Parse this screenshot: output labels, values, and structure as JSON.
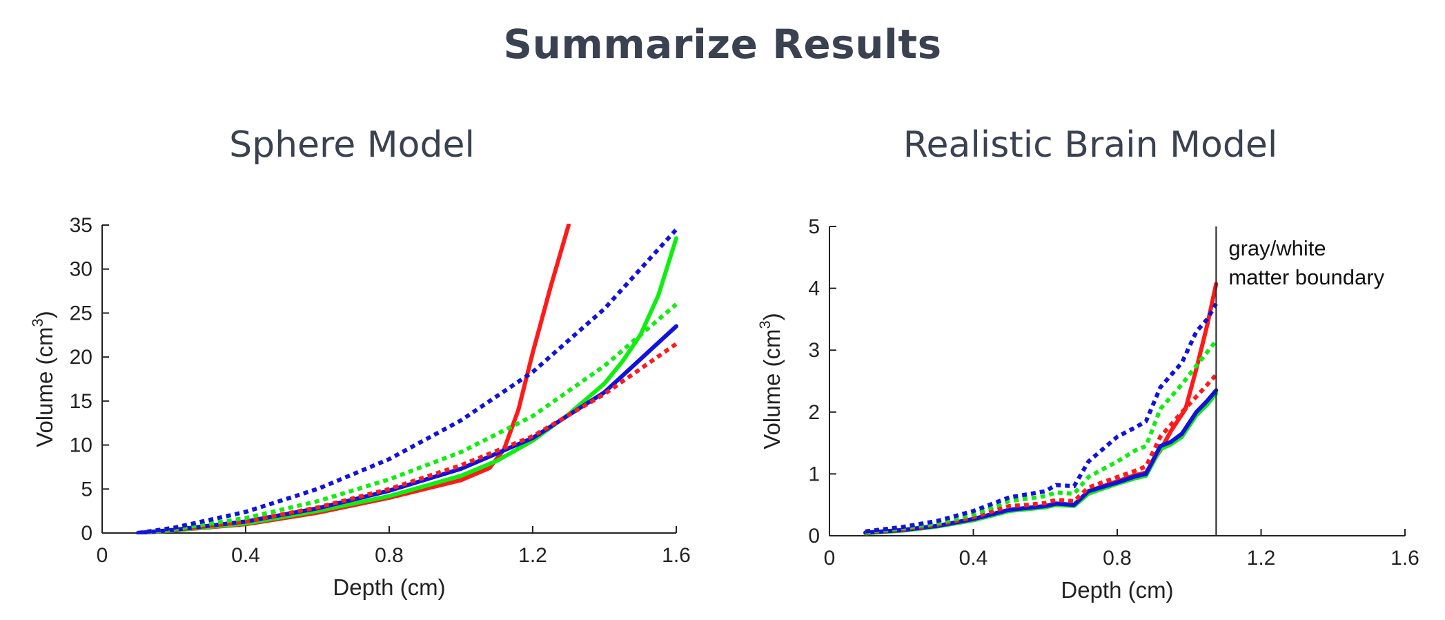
{
  "page": {
    "title": "Summarize Results"
  },
  "colors": {
    "red": "#ff1a1a",
    "green": "#10ee10",
    "blue": "#1212dd",
    "text": "#3a4150"
  },
  "chart_data": [
    {
      "type": "line",
      "title": "Sphere Model",
      "xlabel": "Depth (cm)",
      "ylabel": "Volume (cm",
      "ylabel_sup": "3",
      "ylabel_end": ")",
      "xlim": [
        0,
        1.6
      ],
      "ylim": [
        0,
        35
      ],
      "xticks": [
        0,
        0.4,
        0.8,
        1.2,
        1.6
      ],
      "xtick_labels": [
        "0",
        "0.4",
        "0.8",
        "1.2",
        "1.6"
      ],
      "yticks": [
        0,
        5,
        10,
        15,
        20,
        25,
        30,
        35
      ],
      "ytick_labels": [
        "0",
        "5",
        "10",
        "15",
        "20",
        "25",
        "30",
        "35"
      ],
      "grid": false,
      "series": [
        {
          "color": "#ff1a1a",
          "style": "solid",
          "x": [
            0.1,
            0.2,
            0.4,
            0.6,
            0.8,
            1.0,
            1.08,
            1.12,
            1.16,
            1.2,
            1.25,
            1.3
          ],
          "y": [
            0,
            0.3,
            1.0,
            2.3,
            4.0,
            6.0,
            7.4,
            9.5,
            14.0,
            20.5,
            28.0,
            35.0
          ]
        },
        {
          "color": "#10ee10",
          "style": "solid",
          "x": [
            0.1,
            0.2,
            0.4,
            0.6,
            0.8,
            1.0,
            1.1,
            1.2,
            1.3,
            1.4,
            1.45,
            1.5,
            1.55,
            1.6
          ],
          "y": [
            0,
            0.3,
            1.1,
            2.5,
            4.2,
            6.5,
            8.2,
            10.5,
            13.5,
            17.0,
            19.5,
            22.5,
            27.0,
            33.5
          ]
        },
        {
          "color": "#1212dd",
          "style": "solid",
          "x": [
            0.1,
            0.2,
            0.4,
            0.6,
            0.8,
            1.0,
            1.2,
            1.4,
            1.6
          ],
          "y": [
            0,
            0.35,
            1.3,
            2.8,
            4.8,
            7.3,
            10.8,
            16.0,
            23.5
          ]
        },
        {
          "color": "#ff1a1a",
          "style": "dotted",
          "x": [
            0.1,
            0.2,
            0.4,
            0.6,
            0.8,
            1.0,
            1.2,
            1.4,
            1.6
          ],
          "y": [
            0,
            0.35,
            1.3,
            2.9,
            5.0,
            7.7,
            11.0,
            15.8,
            21.5
          ]
        },
        {
          "color": "#10ee10",
          "style": "dotted",
          "x": [
            0.1,
            0.2,
            0.4,
            0.6,
            0.8,
            1.0,
            1.2,
            1.4,
            1.6
          ],
          "y": [
            0,
            0.45,
            1.7,
            3.6,
            6.1,
            9.2,
            13.3,
            19.0,
            26.0
          ]
        },
        {
          "color": "#1212dd",
          "style": "dotted",
          "x": [
            0.1,
            0.2,
            0.4,
            0.6,
            0.8,
            1.0,
            1.2,
            1.4,
            1.6
          ],
          "y": [
            0,
            0.6,
            2.4,
            5.0,
            8.4,
            12.8,
            18.3,
            25.5,
            34.5
          ]
        }
      ]
    },
    {
      "type": "line",
      "title": "Realistic Brain Model",
      "xlabel": "Depth (cm)",
      "ylabel": "Volume (cm",
      "ylabel_sup": "3",
      "ylabel_end": ")",
      "xlim": [
        0,
        1.6
      ],
      "ylim": [
        0,
        5
      ],
      "xticks": [
        0,
        0.4,
        0.8,
        1.2,
        1.6
      ],
      "xtick_labels": [
        "0",
        "0.4",
        "0.8",
        "1.2",
        "1.6"
      ],
      "yticks": [
        0,
        1,
        2,
        3,
        4,
        5
      ],
      "ytick_labels": [
        "0",
        "1",
        "2",
        "3",
        "4",
        "5"
      ],
      "grid": false,
      "vline": 1.075,
      "annotation": [
        "gray/white",
        "matter boundary"
      ],
      "series": [
        {
          "color": "#ff1a1a",
          "style": "solid",
          "x": [
            0.1,
            0.2,
            0.3,
            0.4,
            0.5,
            0.55,
            0.6,
            0.63,
            0.68,
            0.72,
            0.8,
            0.85,
            0.88,
            0.92,
            0.95,
            0.99,
            1.02,
            1.05,
            1.075
          ],
          "y": [
            0.05,
            0.09,
            0.16,
            0.27,
            0.42,
            0.45,
            0.48,
            0.52,
            0.5,
            0.72,
            0.88,
            0.98,
            1.02,
            1.38,
            1.7,
            2.05,
            2.7,
            3.4,
            4.07
          ]
        },
        {
          "color": "#10ee10",
          "style": "solid",
          "x": [
            0.1,
            0.2,
            0.3,
            0.4,
            0.5,
            0.55,
            0.6,
            0.63,
            0.68,
            0.72,
            0.8,
            0.85,
            0.88,
            0.92,
            0.95,
            0.98,
            1.02,
            1.05,
            1.075
          ],
          "y": [
            0.04,
            0.08,
            0.15,
            0.25,
            0.4,
            0.43,
            0.46,
            0.5,
            0.48,
            0.68,
            0.84,
            0.93,
            0.97,
            1.4,
            1.48,
            1.6,
            1.95,
            2.12,
            2.3
          ]
        },
        {
          "color": "#1212dd",
          "style": "solid",
          "x": [
            0.1,
            0.2,
            0.3,
            0.4,
            0.5,
            0.55,
            0.6,
            0.63,
            0.68,
            0.72,
            0.8,
            0.85,
            0.88,
            0.92,
            0.95,
            0.98,
            1.02,
            1.05,
            1.075
          ],
          "y": [
            0.05,
            0.09,
            0.16,
            0.27,
            0.42,
            0.45,
            0.48,
            0.52,
            0.5,
            0.72,
            0.86,
            0.96,
            1.0,
            1.45,
            1.52,
            1.65,
            2.0,
            2.18,
            2.35
          ]
        },
        {
          "color": "#ff1a1a",
          "style": "dotted",
          "x": [
            0.1,
            0.2,
            0.3,
            0.4,
            0.5,
            0.55,
            0.6,
            0.63,
            0.68,
            0.72,
            0.8,
            0.85,
            0.88,
            0.92,
            0.95,
            0.98,
            1.02,
            1.075
          ],
          "y": [
            0.05,
            0.1,
            0.18,
            0.3,
            0.48,
            0.5,
            0.53,
            0.58,
            0.56,
            0.78,
            0.95,
            1.05,
            1.12,
            1.6,
            1.8,
            2.0,
            2.25,
            2.6
          ]
        },
        {
          "color": "#10ee10",
          "style": "dotted",
          "x": [
            0.1,
            0.2,
            0.3,
            0.4,
            0.5,
            0.55,
            0.6,
            0.63,
            0.68,
            0.72,
            0.8,
            0.85,
            0.88,
            0.92,
            0.95,
            0.98,
            1.02,
            1.075
          ],
          "y": [
            0.06,
            0.12,
            0.2,
            0.34,
            0.56,
            0.6,
            0.64,
            0.7,
            0.68,
            0.95,
            1.2,
            1.38,
            1.45,
            2.05,
            2.25,
            2.45,
            2.75,
            3.15
          ]
        },
        {
          "color": "#1212dd",
          "style": "dotted",
          "x": [
            0.1,
            0.2,
            0.3,
            0.4,
            0.5,
            0.55,
            0.6,
            0.63,
            0.68,
            0.72,
            0.8,
            0.85,
            0.88,
            0.92,
            0.95,
            0.98,
            1.02,
            1.05,
            1.075
          ],
          "y": [
            0.07,
            0.14,
            0.24,
            0.4,
            0.62,
            0.67,
            0.72,
            0.82,
            0.8,
            1.2,
            1.6,
            1.75,
            1.85,
            2.4,
            2.6,
            2.8,
            3.3,
            3.5,
            3.75
          ]
        }
      ]
    }
  ]
}
